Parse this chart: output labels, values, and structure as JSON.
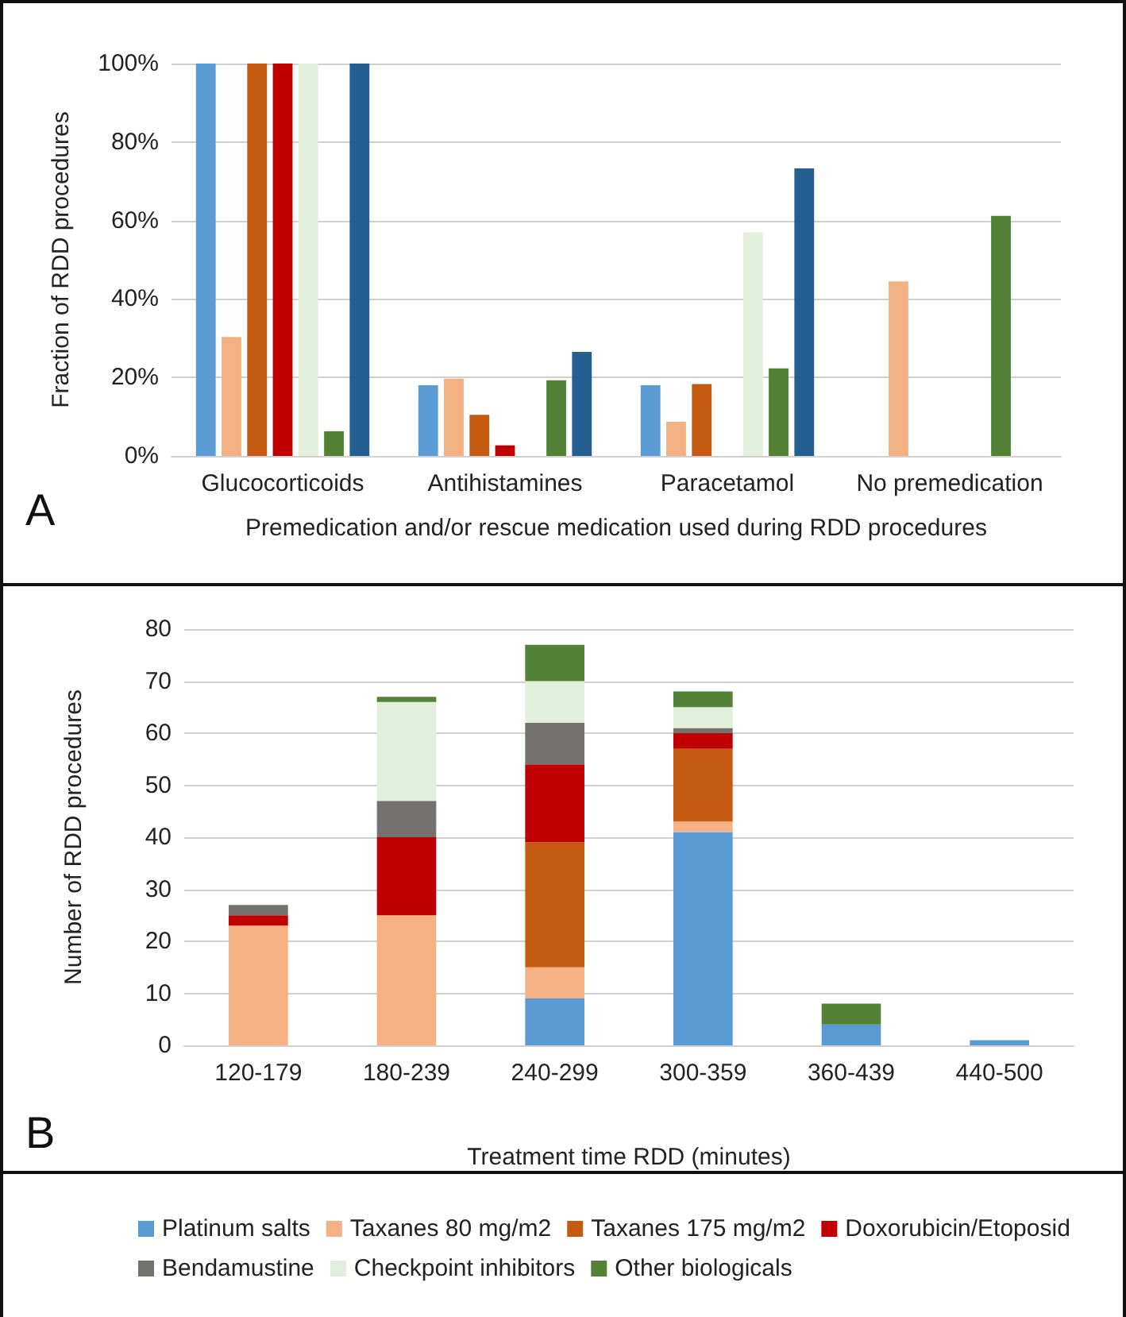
{
  "chart_data": [
    {
      "type": "bar",
      "annotations": [
        "A"
      ],
      "xlabel": "Premedication and/or rescue medication used during RDD procedures",
      "ylabel": "Fraction of RDD procedures",
      "categories": [
        "Glucocorticoids",
        "Antihistamines",
        "Paracetamol",
        "No premedication"
      ],
      "series": [
        {
          "color": "#5b9bd5",
          "values": [
            100,
            18,
            18,
            0
          ]
        },
        {
          "color": "#f4b183",
          "values": [
            30.3,
            19.7,
            8.7,
            44.5
          ]
        },
        {
          "color": "#c55a11",
          "values": [
            100,
            10.5,
            18.3,
            0
          ]
        },
        {
          "color": "#c00000",
          "values": [
            100,
            2.7,
            0,
            0
          ]
        },
        {
          "color": "#e2efda",
          "values": [
            100,
            0,
            57,
            0
          ]
        },
        {
          "color": "#538135",
          "values": [
            6.3,
            19.3,
            22.3,
            61.2
          ]
        },
        {
          "color": "#255e91",
          "values": [
            100,
            26.5,
            73.3,
            0
          ]
        }
      ],
      "ylim": [
        0,
        100
      ],
      "yticks": [
        {
          "value": 0,
          "label": "0%"
        },
        {
          "value": 20,
          "label": "20%"
        },
        {
          "value": 40,
          "label": "40%"
        },
        {
          "value": 60,
          "label": "60%"
        },
        {
          "value": 80,
          "label": "80%"
        },
        {
          "value": 100,
          "label": "100%"
        }
      ],
      "grid": "y",
      "legend": false
    },
    {
      "type": "bar",
      "annotations": [
        "B"
      ],
      "xlabel": "Treatment time RDD (minutes)",
      "ylabel": "Number of RDD procedures",
      "stacked": true,
      "categories": [
        "120-179",
        "180-239",
        "240-299",
        "300-359",
        "360-439",
        "440-500"
      ],
      "series": [
        {
          "name": "Platinum salts",
          "color": "#5b9bd5",
          "values": [
            0,
            0,
            9,
            41,
            4,
            1
          ]
        },
        {
          "name": "Taxanes 80 mg/m2",
          "color": "#f4b183",
          "values": [
            23,
            25,
            6,
            2,
            0,
            0
          ]
        },
        {
          "name": "Taxanes 175 mg/m2",
          "color": "#c55a11",
          "values": [
            0,
            0,
            24,
            14,
            0,
            0
          ]
        },
        {
          "name": "Doxorubicin/Etoposid",
          "color": "#c00000",
          "values": [
            2,
            15,
            15,
            3,
            0,
            0
          ]
        },
        {
          "name": "Bendamustine",
          "color": "#767171",
          "values": [
            2,
            7,
            8,
            1,
            0,
            0
          ]
        },
        {
          "name": "Checkpoint inhibitors",
          "color": "#e2efda",
          "values": [
            0,
            19,
            8,
            4,
            0,
            0
          ]
        },
        {
          "name": "Other biologicals",
          "color": "#538135",
          "values": [
            0,
            1,
            7,
            3,
            4,
            0
          ]
        }
      ],
      "ylim": [
        0,
        80
      ],
      "yticks": [
        0,
        10,
        20,
        30,
        40,
        50,
        60,
        70,
        80
      ],
      "grid": "y",
      "legend": "bottom"
    }
  ]
}
